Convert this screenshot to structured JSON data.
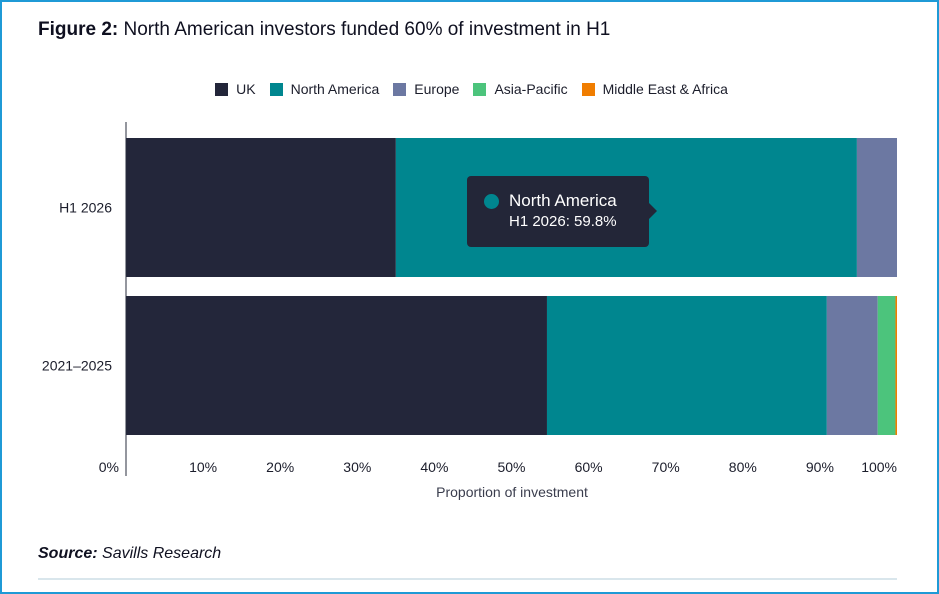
{
  "figure": {
    "label": "Figure 2:",
    "title": "North American investors funded 60% of investment in H1"
  },
  "source": {
    "label": "Source:",
    "text": "Savills Research"
  },
  "tooltip": {
    "series": "North America",
    "value_text": "H1 2026: 59.8%",
    "color": "#00868f"
  },
  "chart_data": {
    "type": "bar",
    "orientation": "horizontal",
    "stacked": true,
    "title": "North American investors funded 60% of investment in H1",
    "xlabel": "Proportion of investment",
    "ylabel": "",
    "xlim": [
      0,
      100
    ],
    "x_ticks": [
      "0%",
      "10%",
      "20%",
      "30%",
      "40%",
      "50%",
      "60%",
      "70%",
      "80%",
      "90%",
      "100%"
    ],
    "categories": [
      "H1 2026",
      "2021–2025"
    ],
    "legend_position": "top-center",
    "grid": false,
    "series": [
      {
        "name": "UK",
        "color": "#23263a",
        "values": [
          35.0,
          54.6
        ]
      },
      {
        "name": "North America",
        "color": "#00868f",
        "values": [
          59.8,
          36.3
        ]
      },
      {
        "name": "Europe",
        "color": "#6c78a2",
        "values": [
          5.2,
          6.6
        ]
      },
      {
        "name": "Asia-Pacific",
        "color": "#4cc47c",
        "values": [
          0,
          2.3
        ]
      },
      {
        "name": "Middle East & Africa",
        "color": "#f07d00",
        "values": [
          0,
          0.2
        ]
      }
    ]
  }
}
